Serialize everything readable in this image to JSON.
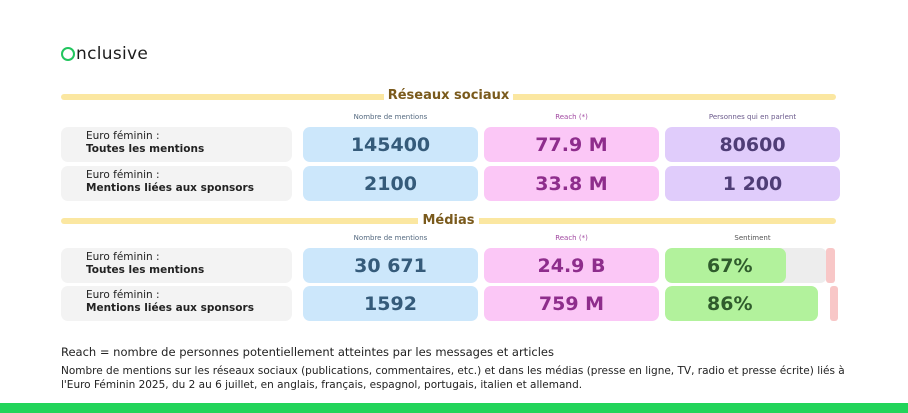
{
  "brand": {
    "name": "nclusive",
    "accent": "#22c55e"
  },
  "social": {
    "title": "Réseaux sociaux",
    "headers": [
      "Nombre de mentions",
      "Reach (*)",
      "Personnes qui en parlent"
    ],
    "rows": [
      {
        "label1": "Euro féminin :",
        "label2": "Toutes les mentions",
        "mentions": "145400",
        "reach": "77.9 M",
        "people": "80600"
      },
      {
        "label1": "Euro féminin :",
        "label2": "Mentions liées aux sponsors",
        "mentions": "2100",
        "reach": "33.8 M",
        "people": "1 200"
      }
    ]
  },
  "media": {
    "title": "Médias",
    "headers": [
      "Nombre de mentions",
      "Reach (*)",
      "Sentiment"
    ],
    "rows": [
      {
        "label1": "Euro féminin :",
        "label2": "Toutes les mentions",
        "mentions": "30 671",
        "reach": "24.9 B",
        "sentiment": "67%",
        "sentiment_value": 67
      },
      {
        "label1": "Euro féminin :",
        "label2": "Mentions liées aux sponsors",
        "mentions": "1592",
        "reach": "759 M",
        "sentiment": "86%",
        "sentiment_value": 86
      }
    ]
  },
  "notes": {
    "reach_def": "Reach = nombre de personnes potentiellement atteintes par les messages et articles",
    "scope": "Nombre de mentions sur les réseaux sociaux (publications, commentaires, etc.) et dans les médias (presse en ligne, TV, radio et presse écrite) liés à l'Euro Féminin 2025, du 2 au 6 juillet, en anglais, français, espagnol, portugais, italien et allemand."
  },
  "colors": {
    "mentions_bg": "#cce7fb",
    "reach_bg": "#fbc7f6",
    "people_bg": "#e0ccfb",
    "sentiment_positive": "#b2f29c",
    "sentiment_negative": "#f8c7c7",
    "section_bar": "#fbe7a1",
    "footer": "#22d45a"
  }
}
